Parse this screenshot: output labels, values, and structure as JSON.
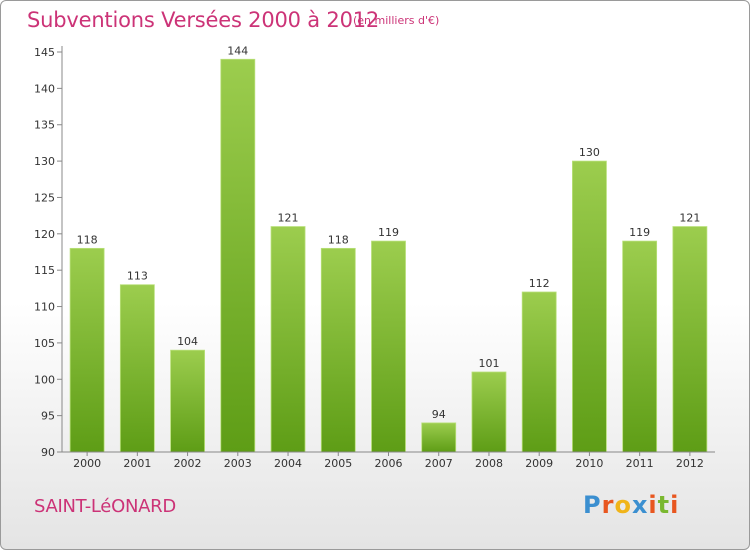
{
  "header": {
    "title": "Subventions Versées 2000 à 2012",
    "subtitle": "(en milliers d'€)"
  },
  "footer": {
    "town": "SAINT-LéONARD",
    "logo": [
      "P",
      "r",
      "o",
      "x",
      "i",
      "t",
      "i"
    ]
  },
  "colors": {
    "title": "#cc3377",
    "bar_light": "#9ccd4e",
    "bar_dark": "#5e9d16",
    "logo": [
      "#3b8fd0",
      "#e8561f",
      "#f0b419",
      "#3b8fd0",
      "#e8561f",
      "#7ab830",
      "#e8561f"
    ]
  },
  "chart_data": {
    "type": "bar",
    "title": "Subventions Versées 2000 à 2012",
    "subtitle": "(en milliers d'€)",
    "categories": [
      "2000",
      "2001",
      "2002",
      "2003",
      "2004",
      "2005",
      "2006",
      "2007",
      "2008",
      "2009",
      "2010",
      "2011",
      "2012"
    ],
    "values": [
      118,
      113,
      104,
      144,
      121,
      118,
      119,
      94,
      101,
      112,
      130,
      119,
      121
    ],
    "ylim": [
      90,
      145
    ],
    "yticks": [
      90,
      95,
      100,
      105,
      110,
      115,
      120,
      125,
      130,
      135,
      140,
      145
    ],
    "xlabel": "",
    "ylabel": "",
    "grid": false,
    "data_labels": true
  }
}
